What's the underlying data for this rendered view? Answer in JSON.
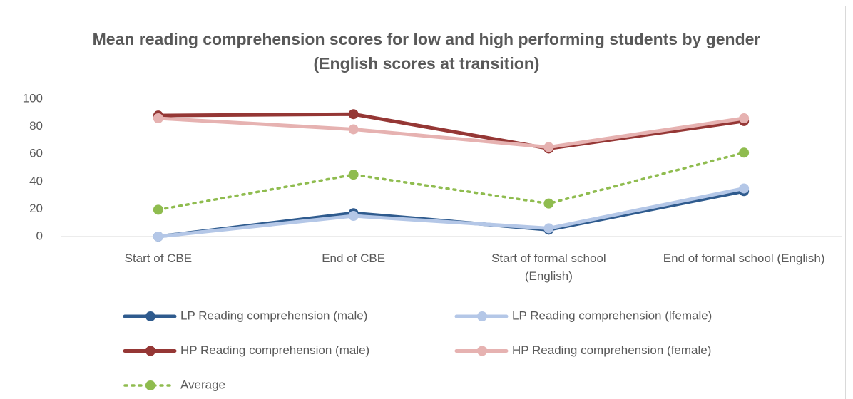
{
  "chart_data": {
    "type": "line",
    "title": "Mean reading comprehension scores for low and high performing students by gender (English scores at transition)",
    "categories": [
      "Start of CBE",
      "End of CBE",
      "Start of formal school (English)",
      "End of formal school (English)"
    ],
    "series": [
      {
        "name": "LP Reading comprehension (male)",
        "color": "#2f5b8e",
        "values": [
          0,
          17,
          5,
          33
        ]
      },
      {
        "name": "LP Reading comprehension (lfemale)",
        "color": "#b4c7e7",
        "values": [
          0,
          15,
          6,
          35
        ]
      },
      {
        "name": "HP Reading comprehension (male)",
        "color": "#953735",
        "values": [
          88,
          89,
          64,
          84
        ]
      },
      {
        "name": "HP Reading comprehension (female)",
        "color": "#e6b2b1",
        "values": [
          86,
          78,
          65,
          86
        ]
      },
      {
        "name": "Average",
        "color": "#8fbc4f",
        "dashed": true,
        "values": [
          19.5,
          45,
          24,
          61
        ]
      }
    ],
    "ylim": [
      0,
      100
    ],
    "yticks": [
      0,
      20,
      40,
      60,
      80,
      100
    ],
    "grid": false
  }
}
